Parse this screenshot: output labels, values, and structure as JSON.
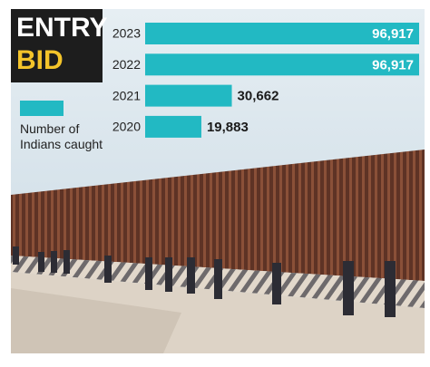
{
  "chart_data": {
    "type": "bar",
    "orientation": "horizontal",
    "title_lines": [
      "ENTRY",
      "BID"
    ],
    "categories": [
      "2023",
      "2022",
      "2021",
      "2020"
    ],
    "series": [
      {
        "name": "Number of Indians caught",
        "color": "#22b9c3",
        "values": [
          96917,
          96917,
          30662,
          19883
        ],
        "value_labels": [
          "96,917",
          "96,917",
          "30,662",
          "19,883"
        ]
      }
    ]
  }
}
